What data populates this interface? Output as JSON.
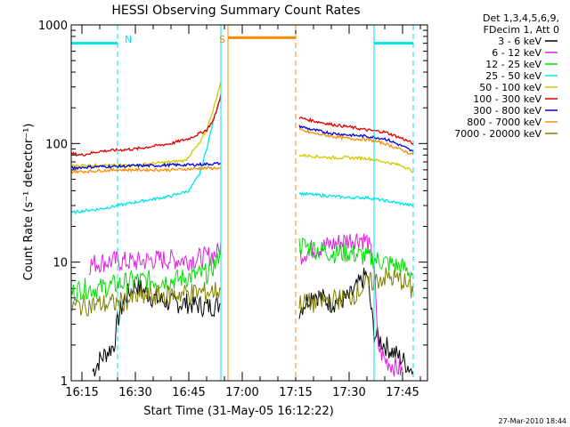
{
  "chart_data": {
    "type": "line",
    "title": "HESSI Observing Summary Count Rates",
    "xlabel": "Start Time (31-May-05 16:12:22)",
    "ylabel": "Count Rate (s⁻¹ detector⁻¹)",
    "yscale": "log",
    "ylim": [
      1,
      1000
    ],
    "xlim": [
      "16:12",
      "17:52"
    ],
    "x_ticks": [
      "16:15",
      "16:30",
      "16:45",
      "17:00",
      "17:15",
      "17:30",
      "17:45"
    ],
    "y_ticks": [
      "1",
      "10",
      "100",
      "1000"
    ],
    "legend_header": [
      "Det 1,3,4,5,6,9,",
      "FDecim 1, Att 0"
    ],
    "legend_position": "right",
    "timestamp": "27-Mar-2010 18:44",
    "annotations": [
      {
        "text": "N",
        "color": "#00e5e5"
      },
      {
        "text": "S",
        "color": "#ff8c00"
      }
    ],
    "vertical_lines": [
      {
        "time": "16:25",
        "color": "#00e5e5",
        "style": "dashed"
      },
      {
        "time": "16:54",
        "color": "#00e5e5",
        "style": "solid"
      },
      {
        "time": "16:56",
        "color": "#ff8c00",
        "style": "solid"
      },
      {
        "time": "17:15",
        "color": "#ff8c00",
        "style": "dashed"
      },
      {
        "time": "17:37",
        "color": "#00e5e5",
        "style": "solid"
      },
      {
        "time": "17:48",
        "color": "#00e5e5",
        "style": "dashed"
      }
    ],
    "flag_bars": [
      {
        "color": "#00e5e5",
        "from": "16:12",
        "to": "16:25",
        "y": 700
      },
      {
        "color": "#ff8c00",
        "from": "16:56",
        "to": "17:15",
        "y": 780
      },
      {
        "color": "#00e5e5",
        "from": "17:37",
        "to": "17:48",
        "y": 700
      }
    ],
    "series": [
      {
        "name": "3 - 6 keV",
        "color": "#000000",
        "segments": [
          {
            "t": [
              "16:18",
              "16:20",
              "16:24",
              "16:25",
              "16:27",
              "16:30",
              "16:35",
              "16:40",
              "16:45",
              "16:50",
              "16:53",
              "16:54"
            ],
            "y": [
              1.2,
              1.5,
              2.0,
              3.2,
              5.0,
              6.5,
              5.0,
              4.5,
              4.5,
              4.2,
              4.3,
              4.5
            ]
          },
          {
            "t": [
              "17:16",
              "17:20",
              "17:25",
              "17:30",
              "17:35",
              "17:37",
              "17:40",
              "17:45",
              "17:48"
            ],
            "y": [
              4.0,
              5.5,
              4.5,
              5.0,
              8.0,
              2.5,
              2.0,
              1.5,
              1.2
            ]
          }
        ]
      },
      {
        "name": "6 - 12 keV",
        "color": "#e020e0",
        "segments": [
          {
            "t": [
              "16:17",
              "16:20",
              "16:25",
              "16:30",
              "16:35",
              "16:40",
              "16:45",
              "16:50",
              "16:53",
              "16:54"
            ],
            "y": [
              9.5,
              10.0,
              10.2,
              10.0,
              10.5,
              10.5,
              10.5,
              11.0,
              12.0,
              14.0
            ]
          },
          {
            "t": [
              "17:16",
              "17:20",
              "17:25",
              "17:30",
              "17:33",
              "17:35",
              "17:37",
              "17:38",
              "17:40",
              "17:45"
            ],
            "y": [
              11.5,
              13.0,
              14.0,
              15.5,
              16.0,
              15.0,
              10.0,
              2.0,
              1.5,
              1.2
            ]
          }
        ]
      },
      {
        "name": "12 - 25 keV",
        "color": "#00e000",
        "segments": [
          {
            "t": [
              "16:12",
              "16:15",
              "16:20",
              "16:25",
              "16:30",
              "16:35",
              "16:40",
              "16:45",
              "16:50",
              "16:53",
              "16:54"
            ],
            "y": [
              5.5,
              6.0,
              6.0,
              6.5,
              7.0,
              7.0,
              7.0,
              7.5,
              8.0,
              10.0,
              15.0
            ]
          },
          {
            "t": [
              "17:16",
              "17:20",
              "17:25",
              "17:30",
              "17:35",
              "17:40",
              "17:45",
              "17:48"
            ],
            "y": [
              14.0,
              13.0,
              12.0,
              12.0,
              11.0,
              10.0,
              9.0,
              8.0
            ]
          }
        ]
      },
      {
        "name": "25 - 50 keV",
        "color": "#00e5e5",
        "segments": [
          {
            "t": [
              "16:12",
              "16:15",
              "16:20",
              "16:25",
              "16:30",
              "16:35",
              "16:40",
              "16:45",
              "16:48",
              "16:50",
              "16:52",
              "16:54"
            ],
            "y": [
              26.0,
              27.0,
              28.0,
              30.0,
              32.0,
              34.0,
              36.0,
              40.0,
              55.0,
              90.0,
              160.0,
              250.0
            ]
          },
          {
            "t": [
              "17:16",
              "17:20",
              "17:25",
              "17:30",
              "17:35",
              "17:40",
              "17:45",
              "17:48"
            ],
            "y": [
              38.0,
              37.0,
              36.0,
              35.0,
              35.0,
              33.0,
              31.0,
              30.0
            ]
          }
        ]
      },
      {
        "name": "50 - 100 keV",
        "color": "#d4c800",
        "segments": [
          {
            "t": [
              "16:12",
              "16:20",
              "16:25",
              "16:30",
              "16:35",
              "16:40",
              "16:44",
              "16:46",
              "16:48",
              "16:50",
              "16:52",
              "16:54"
            ],
            "y": [
              65.0,
              66.0,
              65.0,
              66.0,
              68.0,
              70.0,
              72.0,
              85.0,
              100.0,
              130.0,
              200.0,
              330.0
            ]
          },
          {
            "t": [
              "17:16",
              "17:20",
              "17:25",
              "17:30",
              "17:35",
              "17:40",
              "17:45",
              "17:48"
            ],
            "y": [
              80.0,
              78.0,
              76.0,
              76.0,
              75.0,
              70.0,
              65.0,
              58.0
            ]
          }
        ]
      },
      {
        "name": "100 - 300 keV",
        "color": "#e00000",
        "segments": [
          {
            "t": [
              "16:12",
              "16:15",
              "16:20",
              "16:25",
              "16:30",
              "16:35",
              "16:40",
              "16:45",
              "16:50",
              "16:52",
              "16:53",
              "16:54"
            ],
            "y": [
              82.0,
              80.0,
              86.0,
              88.0,
              90.0,
              95.0,
              100.0,
              110.0,
              130.0,
              160.0,
              200.0,
              260.0
            ]
          },
          {
            "t": [
              "17:16",
              "17:20",
              "17:25",
              "17:30",
              "17:35",
              "17:40",
              "17:45",
              "17:48"
            ],
            "y": [
              165.0,
              155.0,
              145.0,
              138.0,
              130.0,
              125.0,
              110.0,
              100.0
            ]
          }
        ]
      },
      {
        "name": "300 - 800 keV",
        "color": "#0000e0",
        "segments": [
          {
            "t": [
              "16:12",
              "16:15",
              "16:20",
              "16:25",
              "16:30",
              "16:35",
              "16:40",
              "16:45",
              "16:50",
              "16:54"
            ],
            "y": [
              62.0,
              63.0,
              64.0,
              64.0,
              65.0,
              65.0,
              66.0,
              66.0,
              67.0,
              68.0
            ]
          },
          {
            "t": [
              "17:16",
              "17:20",
              "17:25",
              "17:30",
              "17:35",
              "17:40",
              "17:45",
              "17:48"
            ],
            "y": [
              140.0,
              130.0,
              122.0,
              118.0,
              115.0,
              110.0,
              95.0,
              85.0
            ]
          }
        ]
      },
      {
        "name": "800 - 7000 keV",
        "color": "#ff8c00",
        "segments": [
          {
            "t": [
              "16:12",
              "16:15",
              "16:20",
              "16:25",
              "16:30",
              "16:35",
              "16:40",
              "16:45",
              "16:50",
              "16:54"
            ],
            "y": [
              58.0,
              58.0,
              59.0,
              60.0,
              60.0,
              60.0,
              60.0,
              61.0,
              62.0,
              62.0
            ]
          },
          {
            "t": [
              "17:16",
              "17:20",
              "17:25",
              "17:30",
              "17:35",
              "17:40",
              "17:45",
              "17:48"
            ],
            "y": [
              130.0,
              122.0,
              115.0,
              110.0,
              108.0,
              100.0,
              88.0,
              80.0
            ]
          }
        ]
      },
      {
        "name": "7000 - 20000 keV",
        "color": "#808000",
        "segments": [
          {
            "t": [
              "16:12",
              "16:15",
              "16:20",
              "16:25",
              "16:30",
              "16:35",
              "16:40",
              "16:45",
              "16:50",
              "16:54"
            ],
            "y": [
              4.2,
              4.3,
              4.4,
              4.5,
              5.0,
              5.2,
              5.3,
              5.5,
              5.6,
              5.8
            ]
          },
          {
            "t": [
              "17:16",
              "17:20",
              "17:25",
              "17:30",
              "17:35",
              "17:40",
              "17:45",
              "17:48"
            ],
            "y": [
              4.5,
              4.5,
              4.8,
              5.0,
              6.5,
              7.5,
              7.0,
              5.5
            ]
          }
        ]
      }
    ]
  }
}
